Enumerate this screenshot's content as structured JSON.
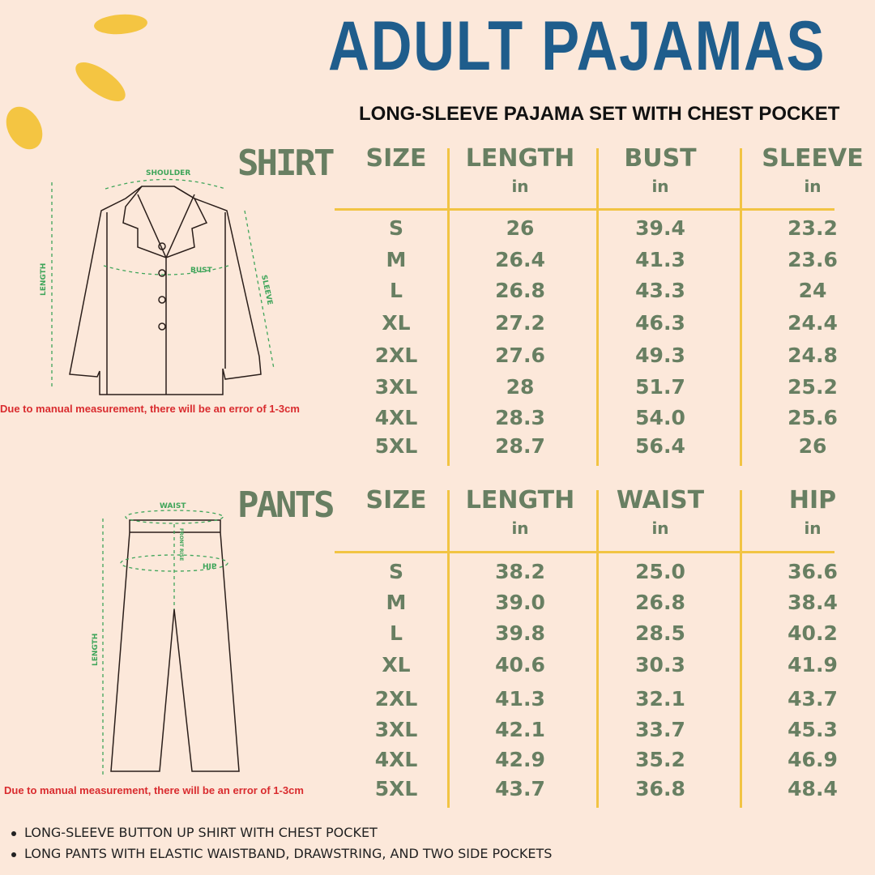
{
  "header": {
    "title": "ADULT PAJAMAS",
    "subtitle": "LONG-SLEEVE PAJAMA SET WITH CHEST POCKET"
  },
  "colors": {
    "background": "#fce8da",
    "title": "#1f5d8c",
    "table_text": "#687f62",
    "grid": "#f2c443",
    "note": "#d92b2e",
    "diagram_label": "#3fa55a"
  },
  "shirt": {
    "section_label": "SHIRT",
    "columns": [
      {
        "label": "SIZE",
        "unit": ""
      },
      {
        "label": "LENGTH",
        "unit": "in"
      },
      {
        "label": "BUST",
        "unit": "in"
      },
      {
        "label": "SLEEVE",
        "unit": "in"
      }
    ],
    "rows": [
      [
        "S",
        "26",
        "39.4",
        "23.2"
      ],
      [
        "M",
        "26.4",
        "41.3",
        "23.6"
      ],
      [
        "L",
        "26.8",
        "43.3",
        "24"
      ],
      [
        "XL",
        "27.2",
        "46.3",
        "24.4"
      ],
      [
        "2XL",
        "27.6",
        "49.3",
        "24.8"
      ],
      [
        "3XL",
        "28",
        "51.7",
        "25.2"
      ],
      [
        "4XL",
        "28.3",
        "54.0",
        "25.6"
      ],
      [
        "5XL",
        "28.7",
        "56.4",
        "26"
      ]
    ],
    "diagram_labels": {
      "shoulder": "SHOULDER",
      "bust": "BUST",
      "length": "LENGTH",
      "sleeve": "SLEEVE"
    },
    "note": "Due to manual measurement, there will be an error of 1-3cm"
  },
  "pants": {
    "section_label": "PANTS",
    "columns": [
      {
        "label": "SIZE",
        "unit": ""
      },
      {
        "label": "LENGTH",
        "unit": "in"
      },
      {
        "label": "WAIST",
        "unit": "in"
      },
      {
        "label": "HIP",
        "unit": "in"
      }
    ],
    "rows": [
      [
        "S",
        "38.2",
        "25.0",
        "36.6"
      ],
      [
        "M",
        "39.0",
        "26.8",
        "38.4"
      ],
      [
        "L",
        "39.8",
        "28.5",
        "40.2"
      ],
      [
        "XL",
        "40.6",
        "30.3",
        "41.9"
      ],
      [
        "2XL",
        "41.3",
        "32.1",
        "43.7"
      ],
      [
        "3XL",
        "42.1",
        "33.7",
        "45.3"
      ],
      [
        "4XL",
        "42.9",
        "35.2",
        "46.9"
      ],
      [
        "5XL",
        "43.7",
        "36.8",
        "48.4"
      ]
    ],
    "diagram_labels": {
      "waist": "WAIST",
      "hip": "HIP",
      "front_rise": "FRONT RISE",
      "length": "LENGTH"
    },
    "note": "Due to manual measurement, there will be an error of 1-3cm"
  },
  "features": [
    "LONG-SLEEVE BUTTON UP SHIRT WITH CHEST POCKET",
    "LONG PANTS WITH ELASTIC WAISTBAND, DRAWSTRING, AND TWO SIDE POCKETS"
  ]
}
